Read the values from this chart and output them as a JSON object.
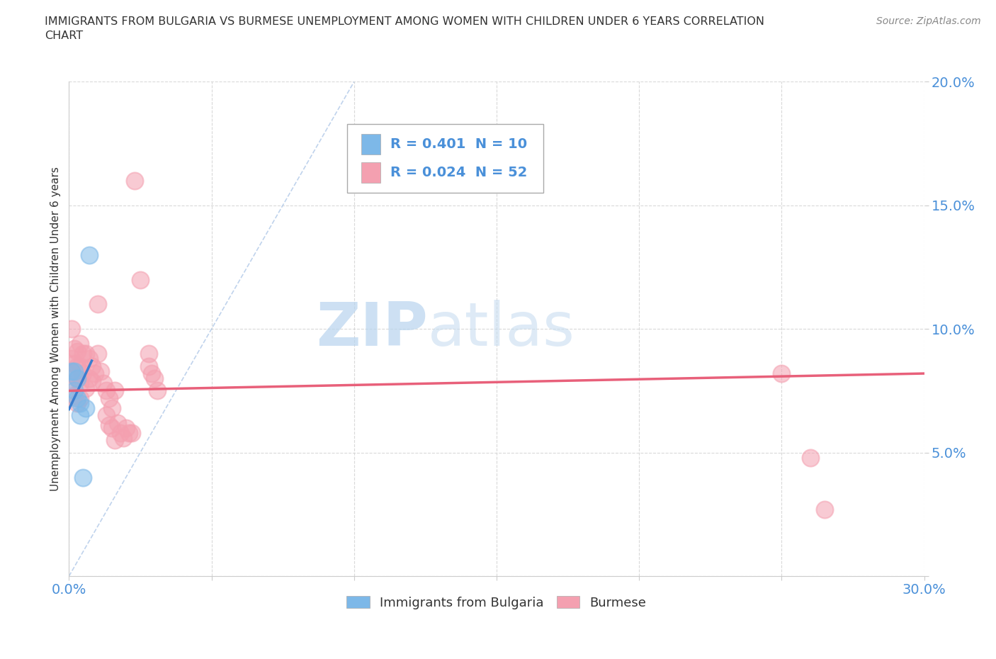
{
  "title": "IMMIGRANTS FROM BULGARIA VS BURMESE UNEMPLOYMENT AMONG WOMEN WITH CHILDREN UNDER 6 YEARS CORRELATION\nCHART",
  "source": "Source: ZipAtlas.com",
  "ylabel": "Unemployment Among Women with Children Under 6 years",
  "xlim": [
    0.0,
    0.3
  ],
  "ylim": [
    0.0,
    0.2
  ],
  "xticks": [
    0.0,
    0.05,
    0.1,
    0.15,
    0.2,
    0.25,
    0.3
  ],
  "yticks": [
    0.0,
    0.05,
    0.1,
    0.15,
    0.2
  ],
  "bulgaria_color": "#7db8e8",
  "burmese_color": "#f4a0b0",
  "bulgaria_line_color": "#3a7ecf",
  "burmese_line_color": "#e8607a",
  "diag_line_color": "#b0c8e8",
  "bulgaria_R": 0.401,
  "bulgaria_N": 10,
  "burmese_R": 0.024,
  "burmese_N": 52,
  "bulgaria_points": [
    [
      0.001,
      0.083
    ],
    [
      0.002,
      0.083
    ],
    [
      0.002,
      0.075
    ],
    [
      0.003,
      0.08
    ],
    [
      0.003,
      0.072
    ],
    [
      0.004,
      0.07
    ],
    [
      0.004,
      0.065
    ],
    [
      0.005,
      0.04
    ],
    [
      0.006,
      0.068
    ],
    [
      0.007,
      0.13
    ]
  ],
  "burmese_points": [
    [
      0.001,
      0.1
    ],
    [
      0.001,
      0.088
    ],
    [
      0.001,
      0.082
    ],
    [
      0.002,
      0.092
    ],
    [
      0.002,
      0.086
    ],
    [
      0.002,
      0.078
    ],
    [
      0.002,
      0.073
    ],
    [
      0.003,
      0.091
    ],
    [
      0.003,
      0.085
    ],
    [
      0.003,
      0.08
    ],
    [
      0.003,
      0.07
    ],
    [
      0.004,
      0.094
    ],
    [
      0.004,
      0.085
    ],
    [
      0.004,
      0.078
    ],
    [
      0.004,
      0.072
    ],
    [
      0.005,
      0.09
    ],
    [
      0.005,
      0.082
    ],
    [
      0.006,
      0.09
    ],
    [
      0.006,
      0.076
    ],
    [
      0.007,
      0.088
    ],
    [
      0.007,
      0.08
    ],
    [
      0.008,
      0.085
    ],
    [
      0.008,
      0.079
    ],
    [
      0.009,
      0.082
    ],
    [
      0.01,
      0.09
    ],
    [
      0.01,
      0.11
    ],
    [
      0.011,
      0.083
    ],
    [
      0.012,
      0.078
    ],
    [
      0.013,
      0.075
    ],
    [
      0.013,
      0.065
    ],
    [
      0.014,
      0.072
    ],
    [
      0.014,
      0.061
    ],
    [
      0.015,
      0.068
    ],
    [
      0.015,
      0.06
    ],
    [
      0.016,
      0.055
    ],
    [
      0.016,
      0.075
    ],
    [
      0.017,
      0.062
    ],
    [
      0.018,
      0.058
    ],
    [
      0.019,
      0.056
    ],
    [
      0.02,
      0.06
    ],
    [
      0.021,
      0.058
    ],
    [
      0.022,
      0.058
    ],
    [
      0.023,
      0.16
    ],
    [
      0.025,
      0.12
    ],
    [
      0.028,
      0.09
    ],
    [
      0.028,
      0.085
    ],
    [
      0.029,
      0.082
    ],
    [
      0.03,
      0.08
    ],
    [
      0.031,
      0.075
    ],
    [
      0.25,
      0.082
    ],
    [
      0.26,
      0.048
    ],
    [
      0.265,
      0.027
    ]
  ],
  "background_color": "#ffffff",
  "grid_color": "#d0d0d0",
  "watermark_color": "#daeaf7",
  "legend_labels": [
    "Immigrants from Bulgaria",
    "Burmese"
  ],
  "title_color": "#333333",
  "axis_label_color": "#333333",
  "tick_label_color": "#4a90d9"
}
